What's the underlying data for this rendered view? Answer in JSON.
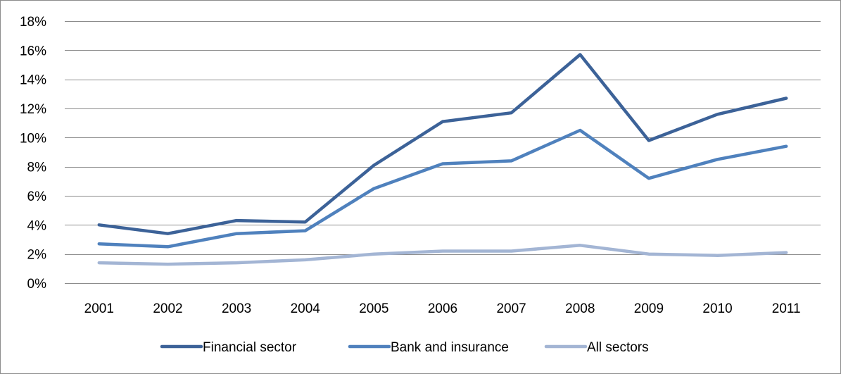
{
  "chart_data": {
    "type": "line",
    "title": "",
    "xlabel": "",
    "ylabel": "",
    "ylim": [
      0,
      18
    ],
    "y_ticks": [
      0,
      2,
      4,
      6,
      8,
      10,
      12,
      14,
      16,
      18
    ],
    "y_tick_labels": [
      "0%",
      "2%",
      "4%",
      "6%",
      "8%",
      "10%",
      "12%",
      "14%",
      "16%",
      "18%"
    ],
    "grid": "horizontal",
    "legend_position": "bottom",
    "categories": [
      "2001",
      "2002",
      "2003",
      "2004",
      "2005",
      "2006",
      "2007",
      "2008",
      "2009",
      "2010",
      "2011"
    ],
    "series": [
      {
        "name": "Financial sector",
        "color": "#3c6298",
        "values": [
          4.0,
          3.4,
          4.3,
          4.2,
          8.1,
          11.1,
          11.7,
          15.7,
          9.8,
          11.6,
          12.7
        ]
      },
      {
        "name": "Bank and insurance",
        "color": "#4f81bd",
        "values": [
          2.7,
          2.5,
          3.4,
          3.6,
          6.5,
          8.2,
          8.4,
          10.5,
          7.2,
          8.5,
          9.4
        ]
      },
      {
        "name": "All sectors",
        "color": "#a3b5d4",
        "values": [
          1.4,
          1.3,
          1.4,
          1.6,
          2.0,
          2.2,
          2.2,
          2.6,
          2.0,
          1.9,
          2.1
        ]
      }
    ]
  }
}
